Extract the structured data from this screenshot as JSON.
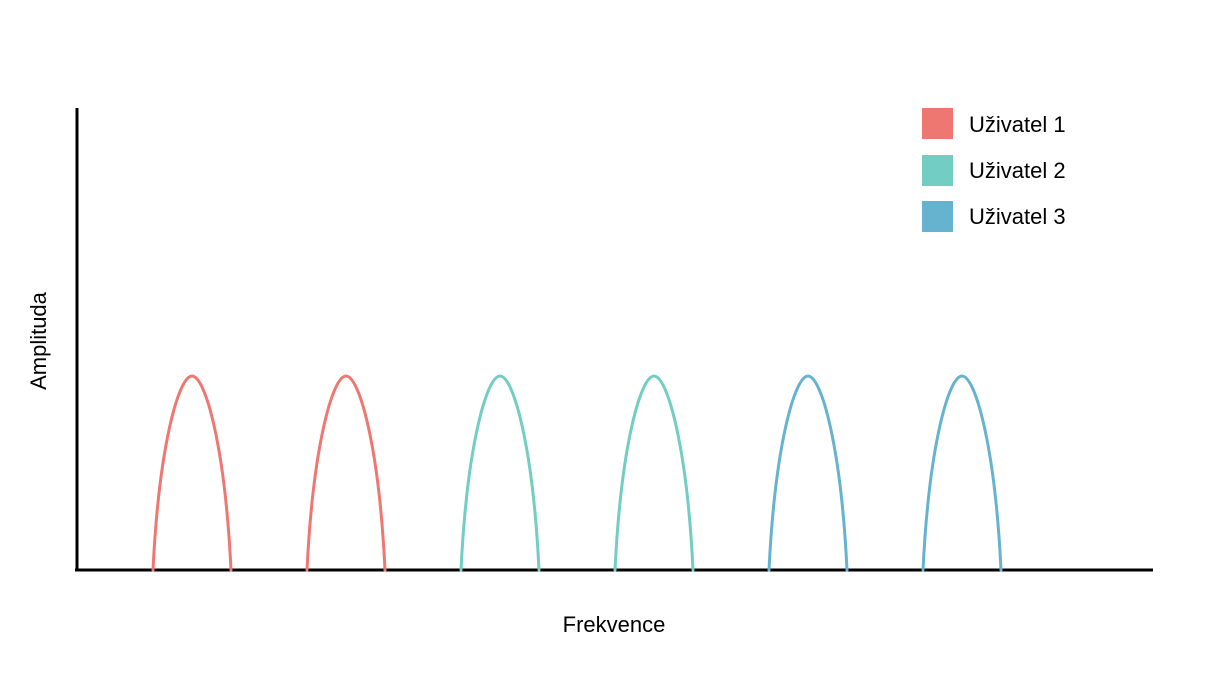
{
  "chart_data": {
    "type": "line",
    "title": "",
    "xlabel": "Frekvence",
    "ylabel": "Amplituda",
    "grid": false,
    "legend_position": "top-right",
    "ylim": [
      0,
      1
    ],
    "series": [
      {
        "name": "Uživatel 1",
        "color": "#EF7772",
        "peaks": [
          1,
          2
        ],
        "amplitude": 0.42
      },
      {
        "name": "Uživatel 2",
        "color": "#72CDC2",
        "peaks": [
          3,
          4
        ],
        "amplitude": 0.42
      },
      {
        "name": "Uživatel 3",
        "color": "#66B3CF",
        "peaks": [
          5,
          6
        ],
        "amplitude": 0.42
      }
    ]
  }
}
